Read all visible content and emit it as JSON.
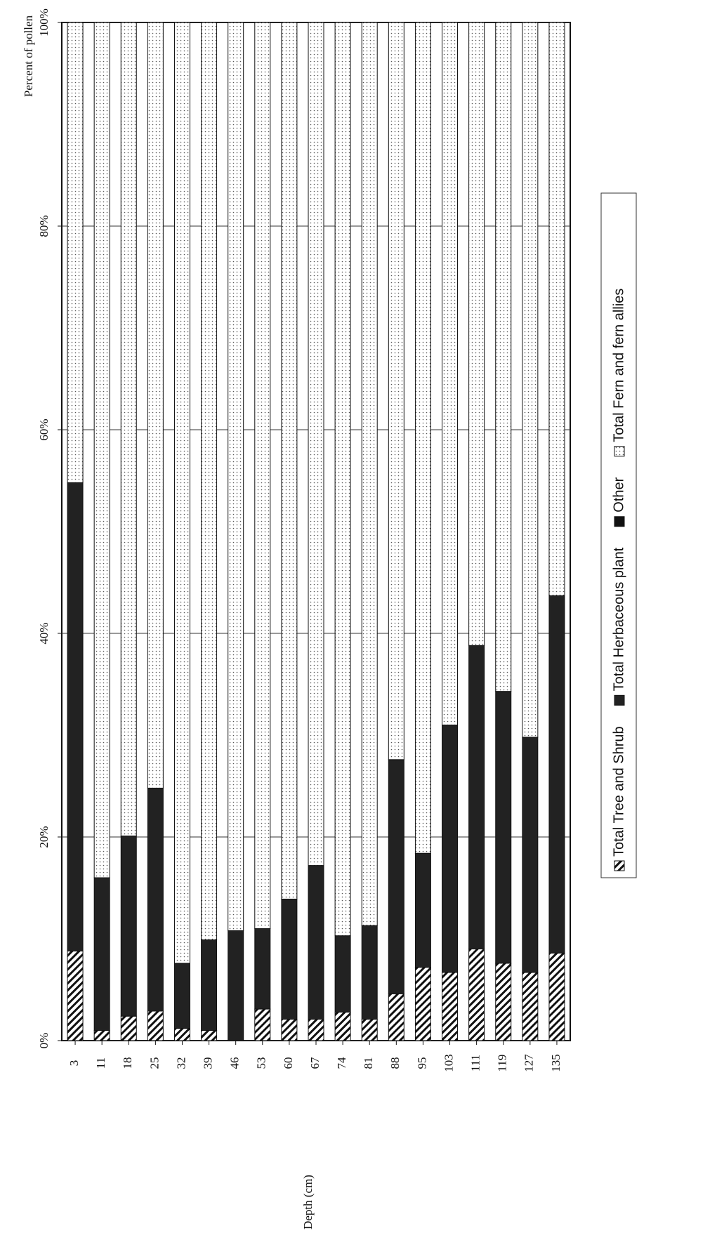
{
  "chart_data": {
    "type": "stacked_bar",
    "x_label": "Depth (cm)",
    "y_label": "Percent of pollen",
    "categories": [
      "3",
      "11",
      "18",
      "25",
      "32",
      "39",
      "46",
      "53",
      "60",
      "67",
      "74",
      "81",
      "88",
      "95",
      "103",
      "111",
      "119",
      "127",
      "135"
    ],
    "series": [
      {
        "name": "Total Tree and Shrub",
        "color": "hatch",
        "values": [
          8.8,
          1.0,
          2.4,
          2.9,
          1.2,
          1.0,
          0,
          3.1,
          2.1,
          2.1,
          2.8,
          2.1,
          4.6,
          7.2,
          6.7,
          9.0,
          7.6,
          6.7,
          8.6
        ]
      },
      {
        "name": "Total Herbaceous plant",
        "color": "#222222",
        "values": [
          46.0,
          15.0,
          17.7,
          21.9,
          6.4,
          8.9,
          10.8,
          7.9,
          11.8,
          15.1,
          7.5,
          9.2,
          23.0,
          11.2,
          24.3,
          29.8,
          26.7,
          23.1,
          35.1
        ]
      },
      {
        "name": "Other",
        "color": "#111111",
        "values": [
          0,
          0,
          0,
          0,
          0,
          0,
          0,
          0,
          0,
          0,
          0,
          0,
          0,
          0,
          0,
          0,
          0,
          0,
          0
        ]
      },
      {
        "name": "Total Fern and fern allies",
        "color": "dots",
        "values": [
          45.2,
          84.0,
          79.9,
          75.2,
          92.4,
          90.1,
          89.2,
          89.0,
          86.1,
          82.8,
          89.7,
          88.7,
          72.4,
          81.6,
          69.0,
          61.2,
          65.7,
          70.2,
          56.3
        ]
      }
    ],
    "ylim": [
      0,
      100
    ],
    "yticks": [
      {
        "value": 0,
        "label": "0%"
      },
      {
        "value": 20,
        "label": "20%"
      },
      {
        "value": 40,
        "label": "40%"
      },
      {
        "value": 60,
        "label": "60%"
      },
      {
        "value": 80,
        "label": "80%"
      },
      {
        "value": 100,
        "label": "100%"
      }
    ],
    "grid": true,
    "legend": "right"
  }
}
